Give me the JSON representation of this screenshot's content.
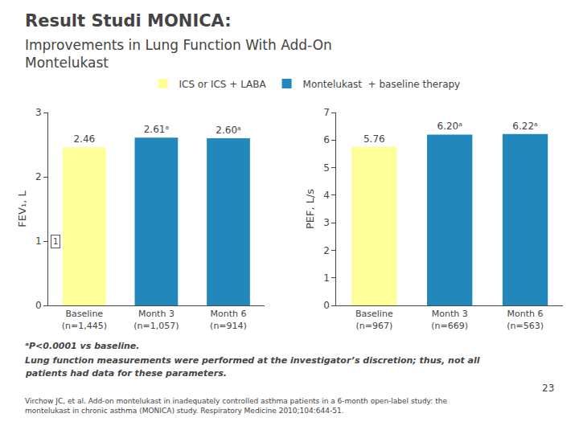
{
  "chart_data": [
    {
      "type": "bar",
      "title": "Result Studi MONICA:",
      "subtitle": "Improvements in Lung Function With Add-On\nMontelukast",
      "categories": [
        "Baseline\n(n=1,445)",
        "Month 3\n(n=1,057)",
        "Month 6\n(n=914)"
      ],
      "series": [
        {
          "name": "ICS or ICS + LABA",
          "color": "#ffff99",
          "values": [
            2.46,
            null,
            null
          ],
          "value_labels": [
            "2.46",
            null,
            null
          ]
        },
        {
          "name": "Montelukast  + baseline therapy",
          "color": "#2288bb",
          "values": [
            null,
            2.61,
            2.6
          ],
          "value_labels": [
            null,
            "2.61ᵃ",
            "2.60ᵃ"
          ]
        }
      ],
      "ylabel": "FEV₁, L",
      "ylim": [
        0,
        3
      ],
      "yticks": [
        0,
        1,
        2,
        3
      ],
      "grid": false,
      "data_labels": true,
      "legend": "top",
      "annotations": [
        {
          "text": "1",
          "y": 1
        },
        {
          "text": "ᵃP<0.0001 vs baseline."
        },
        {
          "text": "Lung function measurements were performed at the investigator’s discretion; thus, not all"
        },
        {
          "text": "patients had data for these parameters."
        },
        {
          "text": "23"
        },
        {
          "text": "Virchow JC, et al. Add-on montelukast in inadequately controlled asthma patients in a 6-month open-label study: the\nmontelukast in chronic asthma (MONICA) study. Respiratory Medicine 2010;104:644-51."
        }
      ]
    },
    {
      "type": "bar",
      "categories": [
        "Baseline\n(n=967)",
        "Month 3\n(n=669)",
        "Month 6\n(n=563)"
      ],
      "series": [
        {
          "name": "ICS or ICS + LABA",
          "color": "#ffff99",
          "values": [
            5.76,
            null,
            null
          ],
          "value_labels": [
            "5.76",
            null,
            null
          ]
        },
        {
          "name": "Montelukast  + baseline therapy",
          "color": "#2288bb",
          "values": [
            null,
            6.2,
            6.22
          ],
          "value_labels": [
            null,
            "6.20ᵃ",
            "6.22ᵃ"
          ]
        }
      ],
      "ylabel": "PEF, L/s",
      "ylim": [
        0,
        7
      ],
      "yticks": [
        0,
        1,
        2,
        3,
        4,
        5,
        6,
        7
      ],
      "grid": false,
      "data_labels": true
    }
  ]
}
